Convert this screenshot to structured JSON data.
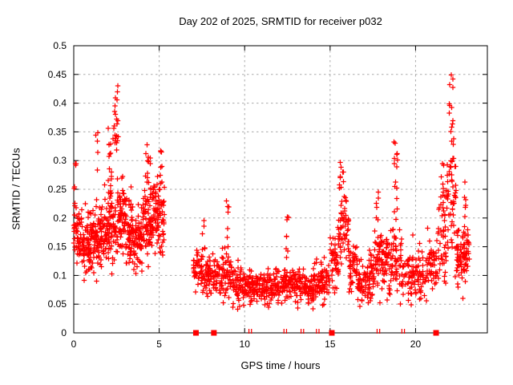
{
  "page": {
    "background": "#ffffff"
  },
  "chart_data": {
    "type": "scatter",
    "title": "Day 202 of 2025, SRMTID for receiver p032",
    "xlabel": "GPS time / hours",
    "ylabel": "SRMTID / TECUs",
    "marker": "plus",
    "marker_color": "#ff0000",
    "grid": {
      "shown": true,
      "color": "#aaaaaa",
      "style": "dashed"
    },
    "legend": "none",
    "xlim": [
      0,
      24.2
    ],
    "ylim": [
      0,
      0.5
    ],
    "xticks": {
      "values": [
        0,
        5,
        10,
        15,
        20
      ],
      "labels": [
        "0",
        "5",
        "10",
        "15",
        "20"
      ]
    },
    "yticks": {
      "values": [
        0,
        0.05,
        0.1,
        0.15,
        0.2,
        0.25,
        0.3,
        0.35,
        0.4,
        0.45,
        0.5
      ],
      "labels": [
        "0",
        "0.05",
        "0.1",
        "0.15",
        "0.2",
        "0.25",
        "0.3",
        "0.35",
        "0.4",
        "0.45",
        "0.5"
      ]
    },
    "data_gap_hours": [
      5.3,
      7.0
    ],
    "seed": 11,
    "density_profile": [
      {
        "x0": 0.0,
        "x1": 0.5,
        "n": 60,
        "center": 0.18,
        "spread": 0.05,
        "ymin": 0.09,
        "ymax": 0.31
      },
      {
        "x0": 0.5,
        "x1": 1.0,
        "n": 65,
        "center": 0.16,
        "spread": 0.05,
        "ymin": 0.06,
        "ymax": 0.3
      },
      {
        "x0": 1.0,
        "x1": 1.5,
        "n": 65,
        "center": 0.16,
        "spread": 0.05,
        "ymin": 0.06,
        "ymax": 0.35
      },
      {
        "x0": 1.5,
        "x1": 2.0,
        "n": 65,
        "center": 0.17,
        "spread": 0.05,
        "ymin": 0.06,
        "ymax": 0.33
      },
      {
        "x0": 2.0,
        "x1": 2.5,
        "n": 65,
        "center": 0.19,
        "spread": 0.06,
        "ymin": 0.08,
        "ymax": 0.43
      },
      {
        "x0": 2.5,
        "x1": 3.0,
        "n": 65,
        "center": 0.2,
        "spread": 0.06,
        "ymin": 0.08,
        "ymax": 0.42
      },
      {
        "x0": 3.0,
        "x1": 3.5,
        "n": 65,
        "center": 0.18,
        "spread": 0.05,
        "ymin": 0.07,
        "ymax": 0.33
      },
      {
        "x0": 3.5,
        "x1": 4.0,
        "n": 65,
        "center": 0.16,
        "spread": 0.05,
        "ymin": 0.05,
        "ymax": 0.3
      },
      {
        "x0": 4.0,
        "x1": 4.5,
        "n": 65,
        "center": 0.19,
        "spread": 0.05,
        "ymin": 0.08,
        "ymax": 0.33
      },
      {
        "x0": 4.5,
        "x1": 5.0,
        "n": 65,
        "center": 0.21,
        "spread": 0.05,
        "ymin": 0.1,
        "ymax": 0.33
      },
      {
        "x0": 5.0,
        "x1": 5.3,
        "n": 35,
        "center": 0.19,
        "spread": 0.06,
        "ymin": 0.06,
        "ymax": 0.32
      },
      {
        "x0": 7.0,
        "x1": 7.5,
        "n": 45,
        "center": 0.11,
        "spread": 0.03,
        "ymin": 0.05,
        "ymax": 0.19
      },
      {
        "x0": 7.5,
        "x1": 8.1,
        "n": 50,
        "center": 0.1,
        "spread": 0.03,
        "ymin": 0.04,
        "ymax": 0.22
      },
      {
        "x0": 8.1,
        "x1": 8.7,
        "n": 50,
        "center": 0.1,
        "spread": 0.03,
        "ymin": 0.05,
        "ymax": 0.17
      },
      {
        "x0": 8.7,
        "x1": 9.3,
        "n": 50,
        "center": 0.1,
        "spread": 0.035,
        "ymin": 0.04,
        "ymax": 0.24
      },
      {
        "x0": 9.3,
        "x1": 10.0,
        "n": 60,
        "center": 0.09,
        "spread": 0.03,
        "ymin": 0.04,
        "ymax": 0.17
      },
      {
        "x0": 10.0,
        "x1": 11.0,
        "n": 85,
        "center": 0.08,
        "spread": 0.025,
        "ymin": 0.03,
        "ymax": 0.15
      },
      {
        "x0": 11.0,
        "x1": 12.0,
        "n": 85,
        "center": 0.08,
        "spread": 0.025,
        "ymin": 0.03,
        "ymax": 0.16
      },
      {
        "x0": 12.0,
        "x1": 13.0,
        "n": 85,
        "center": 0.085,
        "spread": 0.03,
        "ymin": 0.04,
        "ymax": 0.21
      },
      {
        "x0": 13.0,
        "x1": 14.0,
        "n": 85,
        "center": 0.08,
        "spread": 0.025,
        "ymin": 0.03,
        "ymax": 0.16
      },
      {
        "x0": 14.0,
        "x1": 15.0,
        "n": 85,
        "center": 0.085,
        "spread": 0.03,
        "ymin": 0.02,
        "ymax": 0.17
      },
      {
        "x0": 15.0,
        "x1": 15.5,
        "n": 45,
        "center": 0.13,
        "spread": 0.05,
        "ymin": 0.04,
        "ymax": 0.25
      },
      {
        "x0": 15.5,
        "x1": 16.1,
        "n": 50,
        "center": 0.18,
        "spread": 0.05,
        "ymin": 0.07,
        "ymax": 0.3
      },
      {
        "x0": 16.1,
        "x1": 16.6,
        "n": 45,
        "center": 0.12,
        "spread": 0.04,
        "ymin": 0.05,
        "ymax": 0.22
      },
      {
        "x0": 16.6,
        "x1": 17.1,
        "n": 45,
        "center": 0.09,
        "spread": 0.03,
        "ymin": 0.02,
        "ymax": 0.16
      },
      {
        "x0": 17.1,
        "x1": 17.6,
        "n": 45,
        "center": 0.1,
        "spread": 0.035,
        "ymin": 0.03,
        "ymax": 0.18
      },
      {
        "x0": 17.6,
        "x1": 18.1,
        "n": 45,
        "center": 0.13,
        "spread": 0.05,
        "ymin": 0.05,
        "ymax": 0.25
      },
      {
        "x0": 18.1,
        "x1": 18.6,
        "n": 45,
        "center": 0.12,
        "spread": 0.04,
        "ymin": 0.05,
        "ymax": 0.24
      },
      {
        "x0": 18.6,
        "x1": 19.2,
        "n": 50,
        "center": 0.13,
        "spread": 0.06,
        "ymin": 0.05,
        "ymax": 0.34
      },
      {
        "x0": 19.2,
        "x1": 20.0,
        "n": 55,
        "center": 0.1,
        "spread": 0.035,
        "ymin": 0.02,
        "ymax": 0.2
      },
      {
        "x0": 20.0,
        "x1": 20.7,
        "n": 50,
        "center": 0.1,
        "spread": 0.035,
        "ymin": 0.04,
        "ymax": 0.18
      },
      {
        "x0": 20.7,
        "x1": 21.3,
        "n": 45,
        "center": 0.12,
        "spread": 0.045,
        "ymin": 0.05,
        "ymax": 0.25
      },
      {
        "x0": 21.3,
        "x1": 21.8,
        "n": 45,
        "center": 0.16,
        "spread": 0.06,
        "ymin": 0.06,
        "ymax": 0.3
      },
      {
        "x0": 21.8,
        "x1": 22.4,
        "n": 45,
        "center": 0.21,
        "spread": 0.08,
        "ymin": 0.08,
        "ymax": 0.45
      },
      {
        "x0": 22.4,
        "x1": 22.8,
        "n": 40,
        "center": 0.13,
        "spread": 0.05,
        "ymin": 0.06,
        "ymax": 0.28
      },
      {
        "x0": 22.8,
        "x1": 23.15,
        "n": 40,
        "center": 0.14,
        "spread": 0.04,
        "ymin": 0.07,
        "ymax": 0.25
      }
    ],
    "spikes": [
      {
        "x": 2.45,
        "w": 0.3,
        "base": 0.3,
        "top": 0.43,
        "n": 22
      },
      {
        "x": 2.1,
        "w": 0.2,
        "base": 0.28,
        "top": 0.36,
        "n": 8
      },
      {
        "x": 1.35,
        "w": 0.12,
        "base": 0.28,
        "top": 0.35,
        "n": 5
      },
      {
        "x": 0.08,
        "w": 0.12,
        "base": 0.24,
        "top": 0.31,
        "n": 5
      },
      {
        "x": 4.35,
        "w": 0.3,
        "base": 0.26,
        "top": 0.33,
        "n": 10
      },
      {
        "x": 5.1,
        "w": 0.25,
        "base": 0.26,
        "top": 0.32,
        "n": 8
      },
      {
        "x": 9.0,
        "w": 0.15,
        "base": 0.15,
        "top": 0.24,
        "n": 7
      },
      {
        "x": 7.6,
        "w": 0.15,
        "base": 0.14,
        "top": 0.21,
        "n": 5
      },
      {
        "x": 12.5,
        "w": 0.18,
        "base": 0.13,
        "top": 0.21,
        "n": 7
      },
      {
        "x": 15.7,
        "w": 0.3,
        "base": 0.2,
        "top": 0.3,
        "n": 16
      },
      {
        "x": 17.75,
        "w": 0.2,
        "base": 0.16,
        "top": 0.25,
        "n": 8
      },
      {
        "x": 18.85,
        "w": 0.22,
        "base": 0.2,
        "top": 0.34,
        "n": 14
      },
      {
        "x": 22.1,
        "w": 0.28,
        "base": 0.26,
        "top": 0.45,
        "n": 24
      },
      {
        "x": 21.55,
        "w": 0.2,
        "base": 0.2,
        "top": 0.3,
        "n": 8
      },
      {
        "x": 22.95,
        "w": 0.2,
        "base": 0.16,
        "top": 0.28,
        "n": 8
      }
    ],
    "baseline_markers": {
      "squares_x": [
        7.15,
        8.2,
        15.1,
        21.2
      ],
      "ticks_x": [
        10.25,
        10.4,
        12.3,
        12.45,
        13.3,
        13.45,
        14.2,
        14.35,
        17.75,
        17.9,
        19.2,
        19.35
      ]
    }
  }
}
